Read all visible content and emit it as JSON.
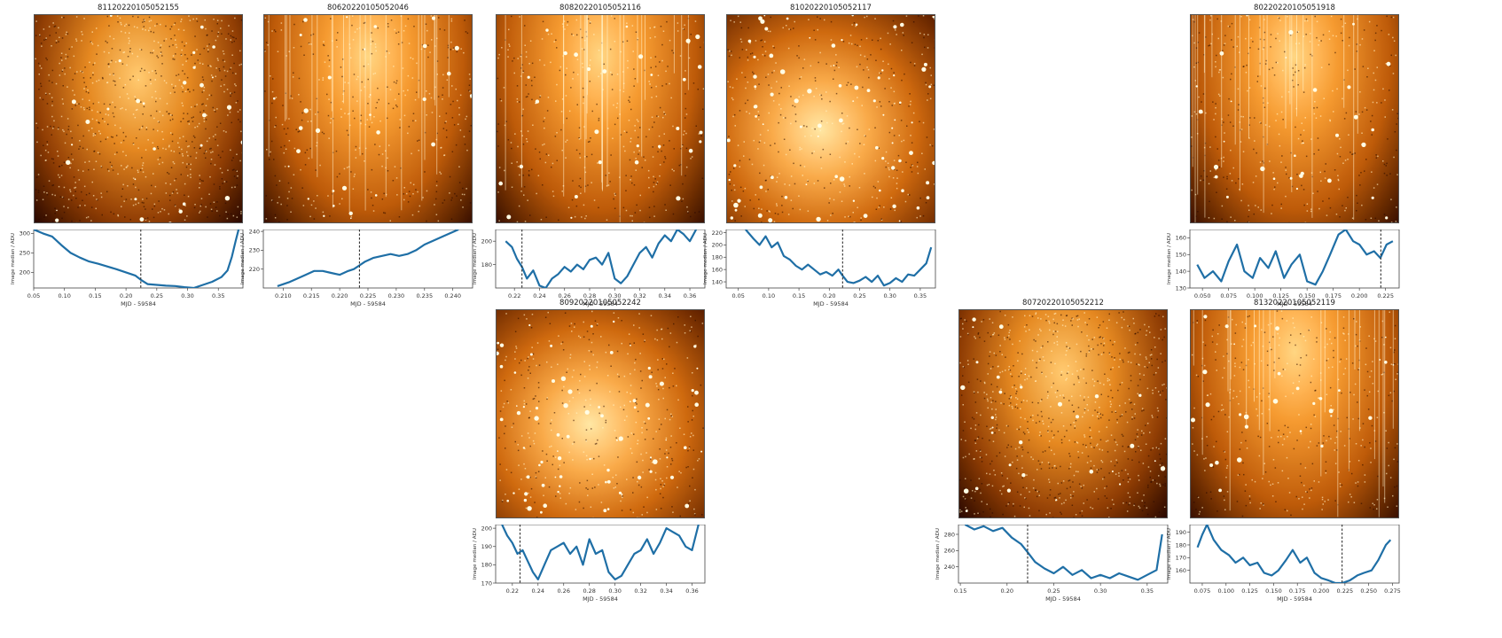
{
  "colors": {
    "line": "#1f6fa6",
    "axis": "#444444",
    "vline": "#333333"
  },
  "panels": [
    {
      "title": "81120220105052155",
      "style": "grainy",
      "chart_data": {
        "type": "line",
        "xlabel": "MJD - 59584",
        "ylabel": "Image median / ADU",
        "xlim": [
          0.05,
          0.39
        ],
        "ylim": [
          160,
          310
        ],
        "xticks": [
          0.05,
          0.1,
          0.15,
          0.2,
          0.25,
          0.3,
          0.35
        ],
        "yticks": [
          200,
          250,
          300
        ],
        "vline": 0.224,
        "x": [
          0.05,
          0.065,
          0.08,
          0.095,
          0.11,
          0.125,
          0.14,
          0.155,
          0.17,
          0.185,
          0.2,
          0.215,
          0.225,
          0.235,
          0.25,
          0.265,
          0.28,
          0.295,
          0.31,
          0.325,
          0.34,
          0.355,
          0.365,
          0.372,
          0.378,
          0.383
        ],
        "y": [
          310,
          300,
          292,
          270,
          250,
          238,
          228,
          222,
          215,
          208,
          200,
          192,
          180,
          170,
          168,
          166,
          165,
          162,
          160,
          168,
          176,
          188,
          205,
          240,
          280,
          310
        ]
      }
    },
    {
      "title": "80620220105052046",
      "style": "streaky",
      "chart_data": {
        "type": "line",
        "xlabel": "MJD - 59584",
        "ylabel": "Image median / ADU",
        "xlim": [
          0.2065,
          0.2435
        ],
        "ylim": [
          210,
          241
        ],
        "xticks": [
          0.21,
          0.215,
          0.22,
          0.225,
          0.23,
          0.235,
          0.24
        ],
        "yticks": [
          220,
          230,
          240
        ],
        "vline": 0.2235,
        "x": [
          0.209,
          0.211,
          0.2125,
          0.214,
          0.2155,
          0.217,
          0.2185,
          0.22,
          0.2215,
          0.2225,
          0.2235,
          0.2245,
          0.226,
          0.2275,
          0.229,
          0.2305,
          0.232,
          0.2335,
          0.235,
          0.2365,
          0.238,
          0.2395,
          0.241
        ],
        "y": [
          211,
          213,
          215,
          217,
          219,
          219,
          218,
          217,
          219,
          220,
          222,
          224,
          226,
          227,
          228,
          227,
          228,
          230,
          233,
          235,
          237,
          239,
          241
        ]
      }
    },
    {
      "title": "80820220105052116",
      "style": "streaky",
      "chart_data": {
        "type": "line",
        "xlabel": "MJD - 59584",
        "ylabel": "Image median / ADU",
        "xlim": [
          0.205,
          0.372
        ],
        "ylim": [
          160,
          210
        ],
        "xticks": [
          0.22,
          0.24,
          0.26,
          0.28,
          0.3,
          0.32,
          0.34,
          0.36
        ],
        "yticks": [
          180,
          200
        ],
        "vline": 0.226,
        "x": [
          0.213,
          0.218,
          0.222,
          0.226,
          0.23,
          0.235,
          0.24,
          0.245,
          0.25,
          0.255,
          0.26,
          0.265,
          0.27,
          0.275,
          0.28,
          0.285,
          0.29,
          0.295,
          0.3,
          0.305,
          0.31,
          0.315,
          0.32,
          0.325,
          0.33,
          0.335,
          0.34,
          0.345,
          0.35,
          0.355,
          0.36,
          0.365
        ],
        "y": [
          200,
          195,
          185,
          178,
          168,
          175,
          162,
          160,
          168,
          172,
          178,
          174,
          180,
          176,
          184,
          186,
          180,
          190,
          168,
          164,
          170,
          180,
          190,
          195,
          186,
          198,
          205,
          200,
          210,
          206,
          200,
          210
        ]
      }
    },
    {
      "title": "81020220105052117",
      "style": "starfield",
      "chart_data": {
        "type": "line",
        "xlabel": "MJD - 59584",
        "ylabel": "Image median / ADU",
        "xlim": [
          0.03,
          0.375
        ],
        "ylim": [
          130,
          225
        ],
        "xticks": [
          0.05,
          0.1,
          0.15,
          0.2,
          0.25,
          0.3,
          0.35
        ],
        "yticks": [
          140,
          160,
          180,
          200,
          220
        ],
        "vline": 0.222,
        "x": [
          0.062,
          0.075,
          0.085,
          0.095,
          0.105,
          0.115,
          0.125,
          0.135,
          0.145,
          0.155,
          0.165,
          0.175,
          0.185,
          0.195,
          0.205,
          0.215,
          0.222,
          0.23,
          0.24,
          0.25,
          0.26,
          0.27,
          0.28,
          0.29,
          0.3,
          0.31,
          0.32,
          0.33,
          0.34,
          0.35,
          0.36,
          0.368
        ],
        "y": [
          225,
          210,
          200,
          214,
          196,
          204,
          182,
          176,
          166,
          160,
          168,
          160,
          152,
          156,
          150,
          160,
          150,
          140,
          138,
          142,
          148,
          140,
          150,
          134,
          138,
          146,
          140,
          152,
          150,
          160,
          170,
          196
        ]
      }
    },
    {
      "title": "80220220105051918",
      "style": "streaky",
      "chart_data": {
        "type": "line",
        "xlabel": "MJD - 59584",
        "ylabel": "Image median / ADU",
        "xlim": [
          0.038,
          0.238
        ],
        "ylim": [
          130,
          165
        ],
        "xticks": [
          0.05,
          0.075,
          0.1,
          0.125,
          0.15,
          0.175,
          0.2,
          0.225
        ],
        "yticks": [
          130,
          140,
          150,
          160
        ],
        "vline": 0.2205,
        "x": [
          0.045,
          0.052,
          0.06,
          0.068,
          0.075,
          0.083,
          0.09,
          0.098,
          0.105,
          0.113,
          0.12,
          0.128,
          0.135,
          0.143,
          0.15,
          0.158,
          0.165,
          0.172,
          0.18,
          0.187,
          0.194,
          0.2,
          0.207,
          0.214,
          0.22,
          0.226,
          0.232
        ],
        "y": [
          144,
          136,
          140,
          134,
          146,
          156,
          140,
          136,
          148,
          142,
          152,
          136,
          144,
          150,
          134,
          132,
          140,
          150,
          162,
          165,
          158,
          156,
          150,
          152,
          148,
          156,
          158
        ]
      }
    },
    {
      "title": "80920220105052242",
      "style": "starfield",
      "chart_data": {
        "type": "line",
        "xlabel": "MJD - 59584",
        "ylabel": "Image median / ADU",
        "xlim": [
          0.207,
          0.37
        ],
        "ylim": [
          170,
          202
        ],
        "xticks": [
          0.22,
          0.24,
          0.26,
          0.28,
          0.3,
          0.32,
          0.34,
          0.36
        ],
        "yticks": [
          170,
          180,
          190,
          200
        ],
        "vline": 0.226,
        "x": [
          0.212,
          0.216,
          0.22,
          0.224,
          0.228,
          0.232,
          0.236,
          0.24,
          0.245,
          0.25,
          0.255,
          0.26,
          0.265,
          0.27,
          0.275,
          0.28,
          0.285,
          0.29,
          0.295,
          0.3,
          0.305,
          0.31,
          0.315,
          0.32,
          0.325,
          0.33,
          0.335,
          0.34,
          0.345,
          0.35,
          0.355,
          0.36,
          0.365
        ],
        "y": [
          202,
          196,
          192,
          186,
          188,
          182,
          176,
          172,
          180,
          188,
          190,
          192,
          186,
          190,
          180,
          194,
          186,
          188,
          176,
          172,
          174,
          180,
          186,
          188,
          194,
          186,
          192,
          200,
          198,
          196,
          190,
          188,
          202
        ]
      }
    },
    {
      "title": "80720220105052212",
      "style": "grainy",
      "chart_data": {
        "type": "line",
        "xlabel": "MJD - 59584",
        "ylabel": "Image median / ADU",
        "xlim": [
          0.148,
          0.372
        ],
        "ylim": [
          220,
          292
        ],
        "xticks": [
          0.15,
          0.2,
          0.25,
          0.3,
          0.35
        ],
        "yticks": [
          240,
          260,
          280
        ],
        "vline": 0.222,
        "x": [
          0.155,
          0.165,
          0.175,
          0.185,
          0.195,
          0.205,
          0.215,
          0.222,
          0.23,
          0.24,
          0.25,
          0.26,
          0.27,
          0.28,
          0.29,
          0.3,
          0.31,
          0.32,
          0.33,
          0.34,
          0.35,
          0.36,
          0.366
        ],
        "y": [
          292,
          286,
          290,
          284,
          288,
          276,
          268,
          258,
          246,
          238,
          232,
          240,
          230,
          236,
          226,
          230,
          226,
          232,
          228,
          224,
          230,
          236,
          280
        ]
      }
    },
    {
      "title": "81320220105052119",
      "style": "streaky",
      "chart_data": {
        "type": "line",
        "xlabel": "MJD - 59584",
        "ylabel": "Image median / ADU",
        "xlim": [
          0.062,
          0.282
        ],
        "ylim": [
          150,
          196
        ],
        "xticks": [
          0.075,
          0.1,
          0.125,
          0.15,
          0.175,
          0.2,
          0.225,
          0.25,
          0.275
        ],
        "yticks": [
          160,
          170,
          180,
          190
        ],
        "vline": 0.222,
        "x": [
          0.07,
          0.075,
          0.08,
          0.087,
          0.095,
          0.103,
          0.11,
          0.118,
          0.125,
          0.133,
          0.14,
          0.148,
          0.155,
          0.163,
          0.17,
          0.178,
          0.185,
          0.193,
          0.2,
          0.208,
          0.215,
          0.222,
          0.23,
          0.238,
          0.245,
          0.253,
          0.26,
          0.268,
          0.273
        ],
        "y": [
          178,
          188,
          196,
          184,
          176,
          172,
          166,
          170,
          164,
          166,
          158,
          156,
          160,
          168,
          176,
          166,
          170,
          158,
          154,
          152,
          150,
          150,
          152,
          156,
          158,
          160,
          168,
          180,
          184
        ]
      }
    }
  ]
}
